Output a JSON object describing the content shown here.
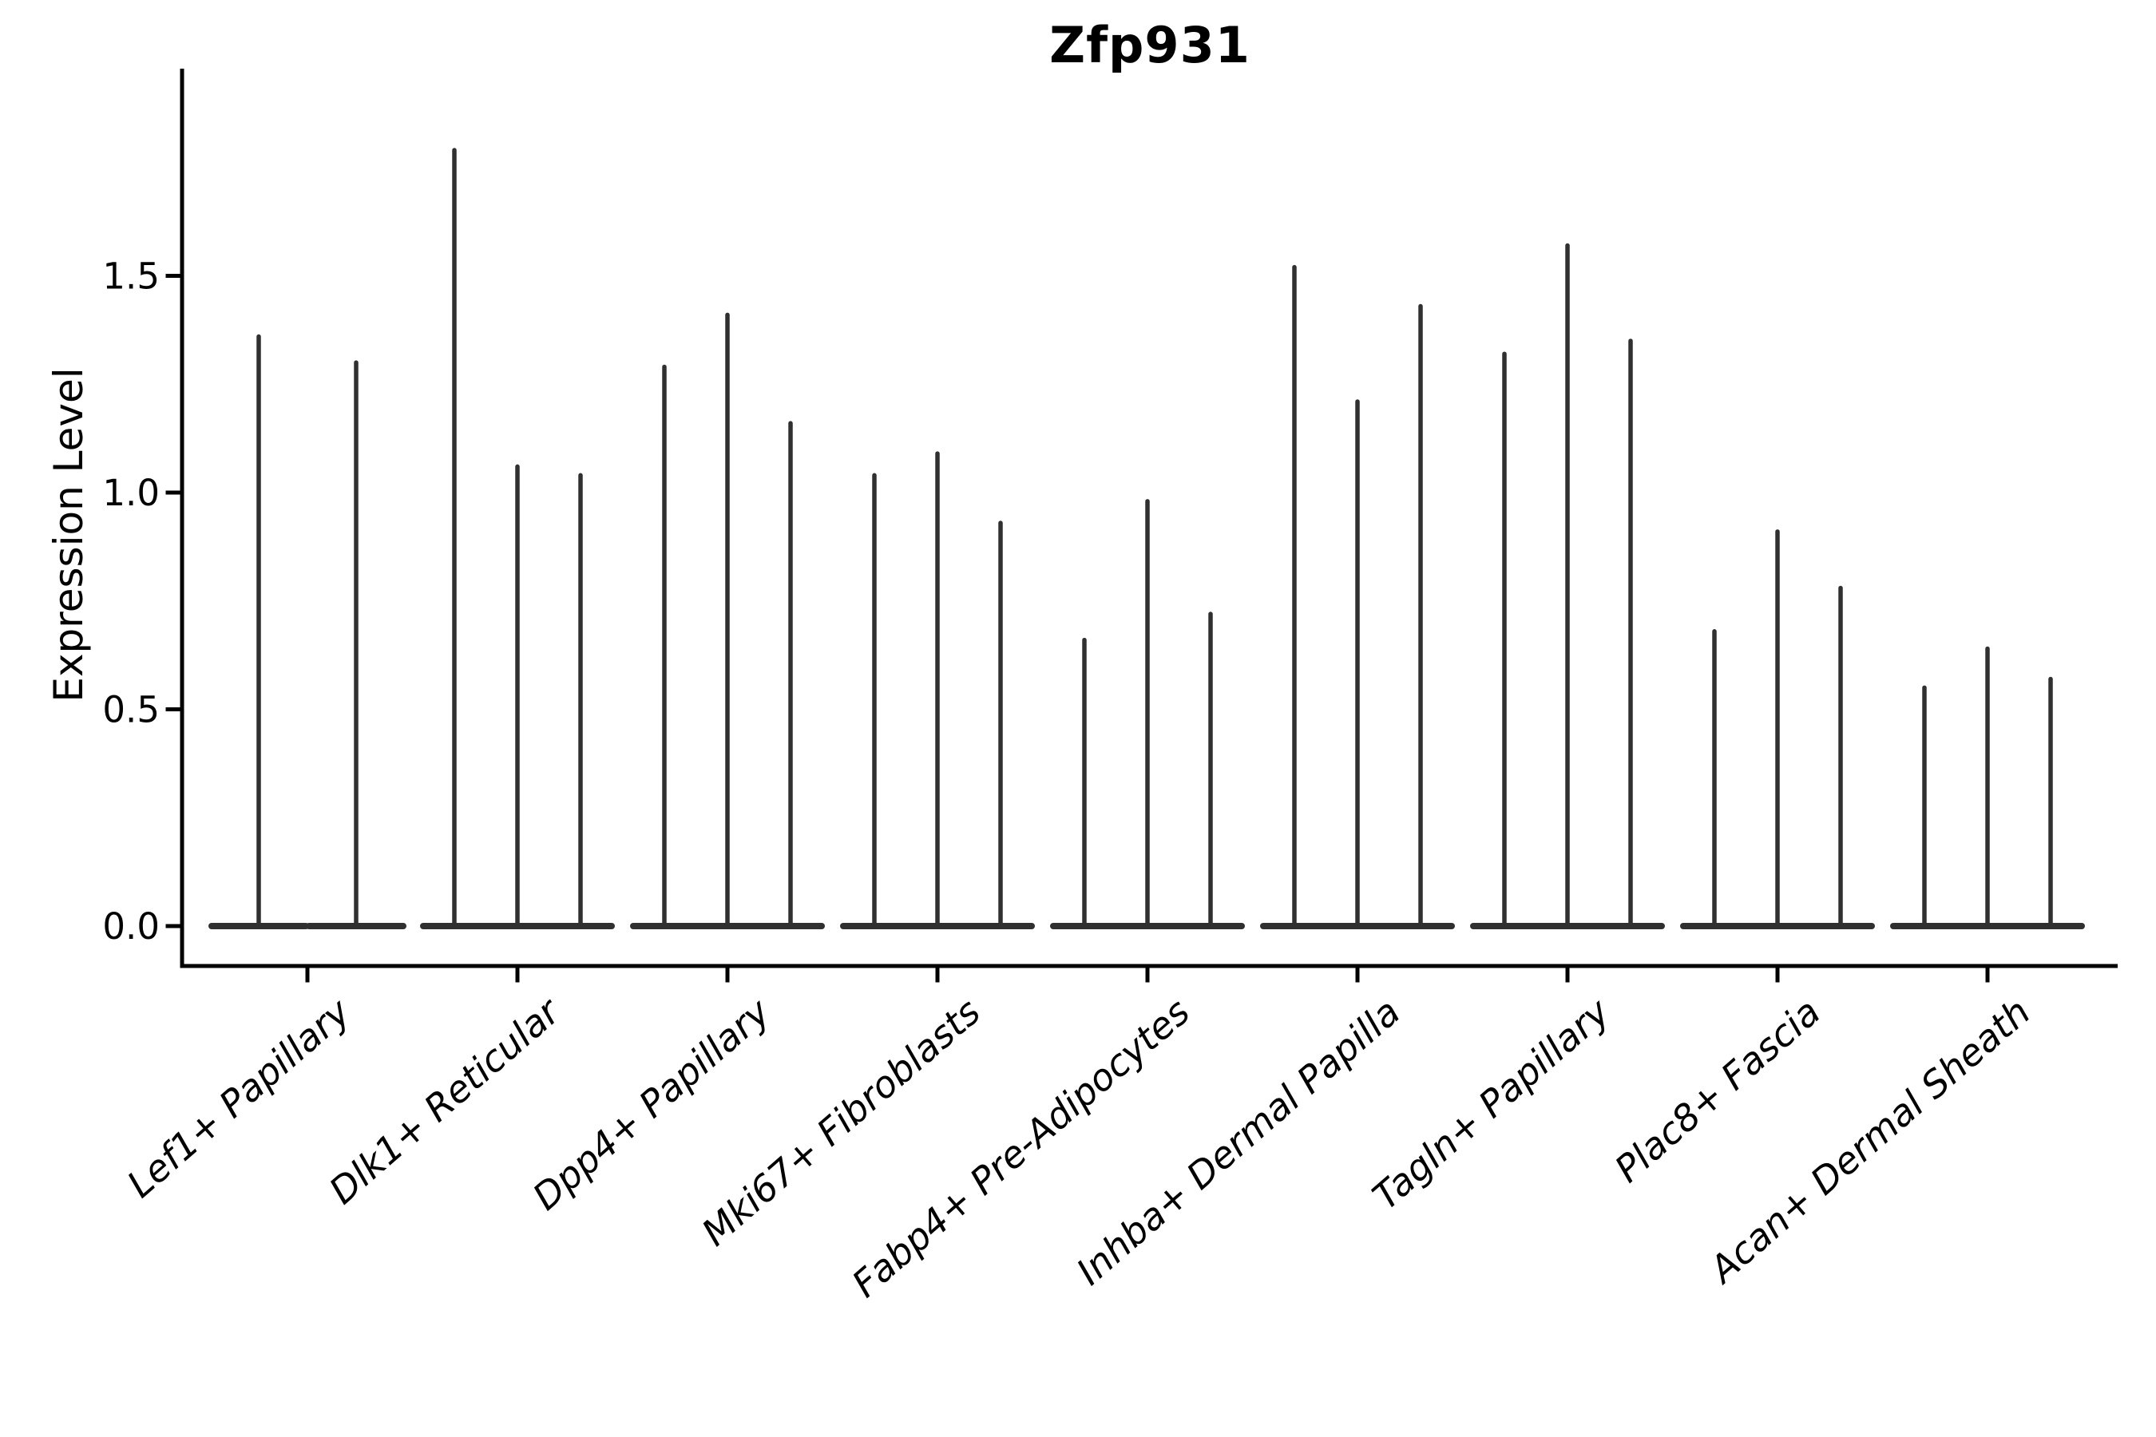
{
  "title": "Zfp931",
  "y_axis_label": "Expression Level",
  "chart_data": {
    "type": "violin",
    "title": "Zfp931",
    "ylabel": "Expression Level",
    "xlabel": "",
    "yticks": [
      0.0,
      0.5,
      1.0,
      1.5
    ],
    "yticklabels": [
      "0.0",
      "0.5",
      "1.0",
      "1.5"
    ],
    "ylim": [
      -0.09,
      1.97
    ],
    "grid": false,
    "legend_position": "none",
    "violin_color": "#303030",
    "axis_color": "#000000",
    "baseline_value": 0.0,
    "categories": [
      "Lef1+ Papillary",
      "Dlk1+ Reticular",
      "Dpp4+ Papillary",
      "Mki67+ Fibroblasts",
      "Fabp4+ Pre-Adipocytes",
      "Inhba+ Dermal Papilla",
      "Tagln+ Papillary",
      "Plac8+ Fascia",
      "Acan+ Dermal Sheath"
    ],
    "groups": [
      {
        "category": "Lef1+ Papillary",
        "violin_max_values": [
          1.36,
          1.3
        ]
      },
      {
        "category": "Dlk1+ Reticular",
        "violin_max_values": [
          1.79,
          1.06,
          1.04
        ]
      },
      {
        "category": "Dpp4+ Papillary",
        "violin_max_values": [
          1.29,
          1.41,
          1.16
        ]
      },
      {
        "category": "Mki67+ Fibroblasts",
        "violin_max_values": [
          1.04,
          1.09,
          0.93
        ]
      },
      {
        "category": "Fabp4+ Pre-Adipocytes",
        "violin_max_values": [
          0.66,
          0.98,
          0.72
        ]
      },
      {
        "category": "Inhba+ Dermal Papilla",
        "violin_max_values": [
          1.52,
          1.21,
          1.43
        ]
      },
      {
        "category": "Tagln+ Papillary",
        "violin_max_values": [
          1.32,
          1.57,
          1.35
        ]
      },
      {
        "category": "Plac8+ Fascia",
        "violin_max_values": [
          0.68,
          0.91,
          0.78
        ]
      },
      {
        "category": "Acan+ Dermal Sheath",
        "violin_max_values": [
          0.55,
          0.64,
          0.57
        ]
      }
    ]
  }
}
